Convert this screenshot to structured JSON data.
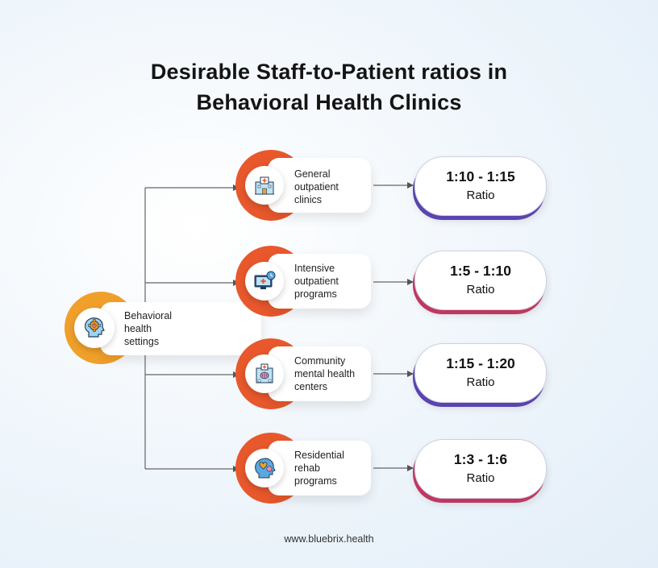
{
  "title": {
    "line1": "Desirable Staff-to-Patient ratios in",
    "line2": "Behavioral Health Clinics"
  },
  "root": {
    "label_lines": [
      "Behavioral",
      "health",
      "settings"
    ],
    "icon": "head-gear-icon",
    "accent": "#f0a02a"
  },
  "settings": [
    {
      "label_lines": [
        "General",
        "outpatient",
        "clinics"
      ],
      "icon": "hospital-building-icon",
      "ratio": "1:10 - 1:15",
      "ratio_label": "Ratio",
      "ratio_accent": "#5b43b0"
    },
    {
      "label_lines": [
        "Intensive",
        "outpatient",
        "programs"
      ],
      "icon": "monitor-medical-clock-icon",
      "ratio": "1:5 - 1:10",
      "ratio_label": "Ratio",
      "ratio_accent": "#c03760"
    },
    {
      "label_lines": [
        "Community",
        "mental health",
        "centers"
      ],
      "icon": "clinic-brain-icon",
      "ratio": "1:15 - 1:20",
      "ratio_label": "Ratio",
      "ratio_accent": "#5b43b0"
    },
    {
      "label_lines": [
        "Residential",
        "rehab",
        "programs"
      ],
      "icon": "head-heart-icon",
      "ratio": "1:3 - 1:6",
      "ratio_label": "Ratio",
      "ratio_accent": "#c03760"
    }
  ],
  "colors": {
    "branch_accent": "#e8582c",
    "connector": "#555555"
  },
  "footer": "www.bluebrix.health"
}
